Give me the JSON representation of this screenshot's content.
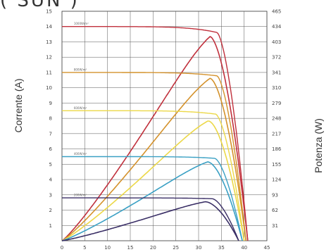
{
  "page": {
    "title_fragment": "( SUN )"
  },
  "chart_data": {
    "type": "line",
    "title": "",
    "xlabel": "",
    "ylabel_left": "Corrente (A)",
    "ylabel_right": "Potenza (W)",
    "xlim": [
      0,
      45
    ],
    "ylim_left": [
      0,
      15
    ],
    "ylim_right": [
      0,
      465
    ],
    "x_ticks": [
      "0",
      "5",
      "10",
      "15",
      "20",
      "25",
      "30",
      "35",
      "40",
      "45"
    ],
    "y_ticks_left": [
      "1",
      "2",
      "3",
      "4",
      "5",
      "6",
      "7",
      "8",
      "9",
      "10",
      "11",
      "12",
      "13",
      "14",
      "15"
    ],
    "y_ticks_right": [
      "31",
      "62",
      "93",
      "124",
      "155",
      "186",
      "217",
      "248",
      "279",
      "310",
      "341",
      "372",
      "403",
      "434",
      "465"
    ],
    "grid": true,
    "annotations": [
      "1000W/m²",
      "800W/m²",
      "600W/m²",
      "400W/m²",
      "200W/m²"
    ],
    "series": [
      {
        "irradiance": "1000W/m²",
        "color": "#c0303c",
        "isc": 14.0,
        "voc": 40.8,
        "vmp": 32.5,
        "imp": 13.3,
        "pmax": 440
      },
      {
        "irradiance": "800W/m²",
        "color": "#d4922c",
        "isc": 11.0,
        "voc": 40.4,
        "vmp": 32.5,
        "imp": 10.6,
        "pmax": 350
      },
      {
        "irradiance": "600W/m²",
        "color": "#ecd848",
        "isc": 8.5,
        "voc": 40.0,
        "vmp": 32.2,
        "imp": 8.1,
        "pmax": 259
      },
      {
        "irradiance": "400W/m²",
        "color": "#3aa0c4",
        "isc": 5.5,
        "voc": 39.6,
        "vmp": 32.0,
        "imp": 5.3,
        "pmax": 170
      },
      {
        "irradiance": "200W/m²",
        "color": "#3a2f66",
        "isc": 2.8,
        "voc": 38.8,
        "vmp": 31.5,
        "imp": 2.7,
        "pmax": 84
      }
    ]
  }
}
